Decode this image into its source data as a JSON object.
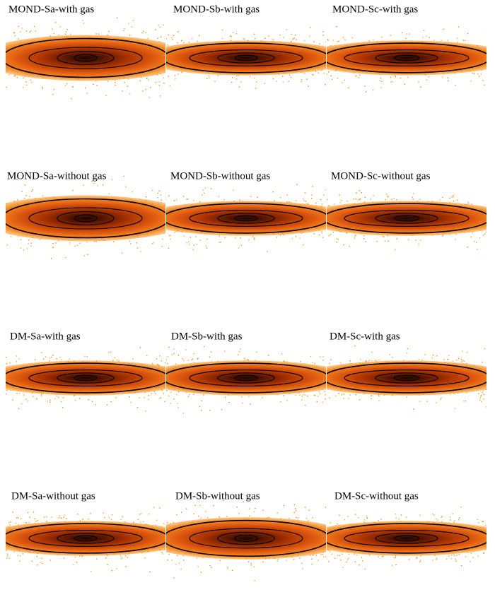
{
  "panels": [
    {
      "label": "MOND-Sa-with gas"
    },
    {
      "label": "MOND-Sb-with gas"
    },
    {
      "label": "MOND-Sc-with gas"
    },
    {
      "label": "MOND-Sa-without gas"
    },
    {
      "label": "MOND-Sb-without gas"
    },
    {
      "label": "MOND-Sc-without gas"
    },
    {
      "label": "DM-Sa-with gas"
    },
    {
      "label": "DM-Sb-with gas"
    },
    {
      "label": "DM-Sc-with gas"
    },
    {
      "label": "DM-Sa-without gas"
    },
    {
      "label": "DM-Sb-without gas"
    },
    {
      "label": "DM-Sc-without gas"
    }
  ]
}
